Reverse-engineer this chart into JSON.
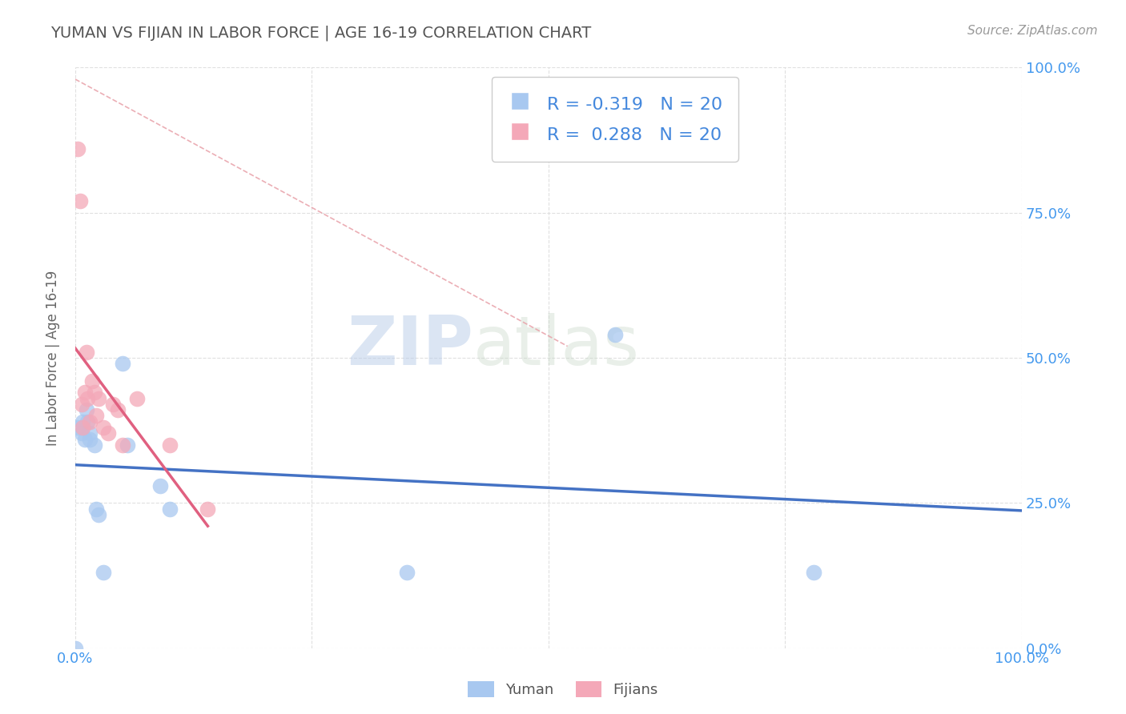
{
  "title": "YUMAN VS FIJIAN IN LABOR FORCE | AGE 16-19 CORRELATION CHART",
  "source_text": "Source: ZipAtlas.com",
  "ylabel": "In Labor Force | Age 16-19",
  "xlim": [
    0.0,
    1.0
  ],
  "ylim": [
    0.0,
    1.0
  ],
  "xticks": [
    0.0,
    0.25,
    0.5,
    0.75,
    1.0
  ],
  "yticks": [
    0.0,
    0.25,
    0.5,
    0.75,
    1.0
  ],
  "xtick_labels": [
    "0.0%",
    "",
    "",
    "",
    "100.0%"
  ],
  "ytick_labels_right": [
    "0.0%",
    "25.0%",
    "50.0%",
    "75.0%",
    "100.0%"
  ],
  "yuman_color": "#A8C8F0",
  "fijian_color": "#F4A8B8",
  "yuman_line_color": "#4472C4",
  "fijian_line_color": "#E06080",
  "diagonal_color": "#E8A0A8",
  "r_yuman": -0.319,
  "r_fijian": 0.288,
  "n_yuman": 20,
  "n_fijian": 20,
  "yuman_x": [
    0.0,
    0.003,
    0.007,
    0.008,
    0.01,
    0.012,
    0.013,
    0.015,
    0.015,
    0.02,
    0.022,
    0.025,
    0.03,
    0.05,
    0.055,
    0.09,
    0.1,
    0.35,
    0.57,
    0.78
  ],
  "yuman_y": [
    0.0,
    0.38,
    0.37,
    0.39,
    0.36,
    0.41,
    0.39,
    0.36,
    0.37,
    0.35,
    0.24,
    0.23,
    0.13,
    0.49,
    0.35,
    0.28,
    0.24,
    0.13,
    0.54,
    0.13
  ],
  "fijian_x": [
    0.003,
    0.005,
    0.007,
    0.008,
    0.01,
    0.012,
    0.013,
    0.015,
    0.018,
    0.02,
    0.022,
    0.025,
    0.03,
    0.035,
    0.04,
    0.045,
    0.05,
    0.065,
    0.1,
    0.14
  ],
  "fijian_y": [
    0.86,
    0.77,
    0.42,
    0.38,
    0.44,
    0.51,
    0.43,
    0.39,
    0.46,
    0.44,
    0.4,
    0.43,
    0.38,
    0.37,
    0.42,
    0.41,
    0.35,
    0.43,
    0.35,
    0.24
  ],
  "watermark_zip": "ZIP",
  "watermark_atlas": "atlas",
  "legend_yuman_label": "Yuman",
  "legend_fijian_label": "Fijians",
  "background_color": "#FFFFFF",
  "grid_color": "#DDDDDD"
}
